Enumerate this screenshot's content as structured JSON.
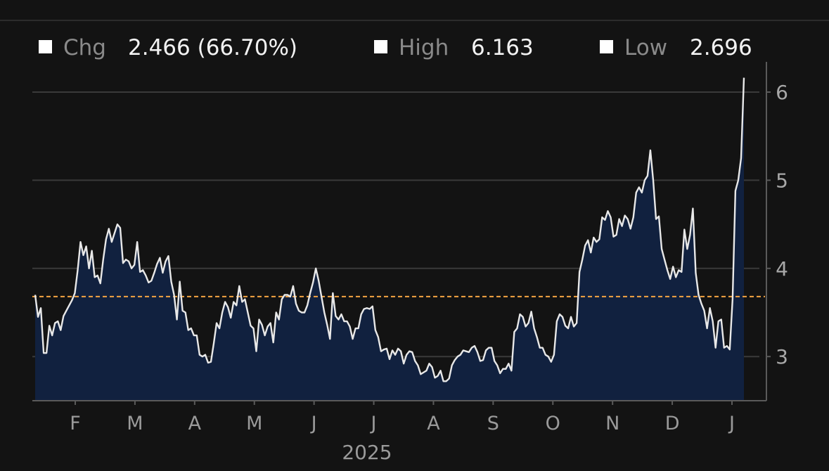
{
  "legend": [
    {
      "label": "Chg",
      "value": "2.466 (66.70%)"
    },
    {
      "label": "High",
      "value": "6.163"
    },
    {
      "label": "Low",
      "value": "2.696"
    }
  ],
  "chart_data": {
    "type": "area",
    "title": "",
    "xlabel": "2025",
    "ylabel": "",
    "x_tick_labels": [
      "F",
      "M",
      "A",
      "M",
      "J",
      "J",
      "A",
      "S",
      "O",
      "N",
      "D",
      "J"
    ],
    "y_ticks": [
      3,
      4,
      5,
      6
    ],
    "ylim": [
      2.5,
      6.3
    ],
    "reference_line": 3.68,
    "grid": true,
    "colors": {
      "line": "#e8e8e8",
      "fill": "#11213f",
      "reference": "#f5a442",
      "grid": "#3a3a3a",
      "axis": "#5a5a5a"
    },
    "series": [
      {
        "values": [
          3.7,
          3.45,
          3.55,
          3.04,
          3.04,
          3.35,
          3.24,
          3.38,
          3.4,
          3.3,
          3.46,
          3.52,
          3.58,
          3.64,
          3.72,
          3.98,
          4.3,
          4.15,
          4.25,
          4.0,
          4.2,
          3.9,
          3.92,
          3.83,
          4.1,
          4.33,
          4.45,
          4.3,
          4.4,
          4.5,
          4.46,
          4.06,
          4.1,
          4.08,
          4.0,
          4.04,
          4.3,
          3.96,
          3.98,
          3.92,
          3.84,
          3.86,
          3.95,
          4.05,
          4.12,
          3.95,
          4.08,
          4.14,
          3.85,
          3.7,
          3.42,
          3.85,
          3.52,
          3.5,
          3.3,
          3.32,
          3.24,
          3.24,
          3.02,
          3.0,
          3.02,
          2.93,
          2.94,
          3.15,
          3.38,
          3.32,
          3.5,
          3.62,
          3.56,
          3.44,
          3.62,
          3.58,
          3.8,
          3.62,
          3.65,
          3.5,
          3.35,
          3.32,
          3.06,
          3.42,
          3.36,
          3.24,
          3.34,
          3.38,
          3.16,
          3.5,
          3.42,
          3.65,
          3.7,
          3.7,
          3.68,
          3.8,
          3.6,
          3.52,
          3.5,
          3.5,
          3.58,
          3.72,
          3.84,
          4.0,
          3.86,
          3.68,
          3.5,
          3.36,
          3.2,
          3.72,
          3.46,
          3.42,
          3.48,
          3.4,
          3.4,
          3.34,
          3.2,
          3.32,
          3.32,
          3.48,
          3.54,
          3.55,
          3.54,
          3.57,
          3.3,
          3.22,
          3.06,
          3.08,
          3.09,
          2.97,
          3.07,
          3.02,
          3.09,
          3.06,
          2.92,
          3.02,
          3.06,
          3.05,
          2.95,
          2.9,
          2.8,
          2.82,
          2.84,
          2.92,
          2.88,
          2.76,
          2.78,
          2.84,
          2.72,
          2.72,
          2.75,
          2.9,
          2.96,
          3.0,
          3.02,
          3.07,
          3.06,
          3.05,
          3.1,
          3.12,
          3.05,
          2.95,
          2.96,
          3.07,
          3.1,
          3.1,
          2.95,
          2.9,
          2.81,
          2.86,
          2.86,
          2.92,
          2.84,
          3.28,
          3.32,
          3.48,
          3.45,
          3.34,
          3.38,
          3.51,
          3.32,
          3.22,
          3.1,
          3.1,
          3.02,
          3.0,
          2.94,
          3.02,
          3.4,
          3.48,
          3.45,
          3.35,
          3.32,
          3.45,
          3.34,
          3.38,
          3.96,
          4.1,
          4.26,
          4.32,
          4.18,
          4.35,
          4.3,
          4.33,
          4.58,
          4.55,
          4.65,
          4.58,
          4.36,
          4.38,
          4.56,
          4.48,
          4.6,
          4.56,
          4.45,
          4.58,
          4.86,
          4.92,
          4.86,
          5.0,
          5.05,
          5.34,
          5.0,
          4.56,
          4.59,
          4.22,
          4.1,
          3.98,
          3.88,
          4.02,
          3.9,
          3.98,
          3.96,
          4.44,
          4.22,
          4.38,
          4.68,
          3.95,
          3.7,
          3.6,
          3.52,
          3.32,
          3.55,
          3.4,
          3.1,
          3.4,
          3.42,
          3.1,
          3.12,
          3.08,
          3.65,
          4.88,
          5.0,
          5.25,
          6.163
        ]
      }
    ]
  }
}
